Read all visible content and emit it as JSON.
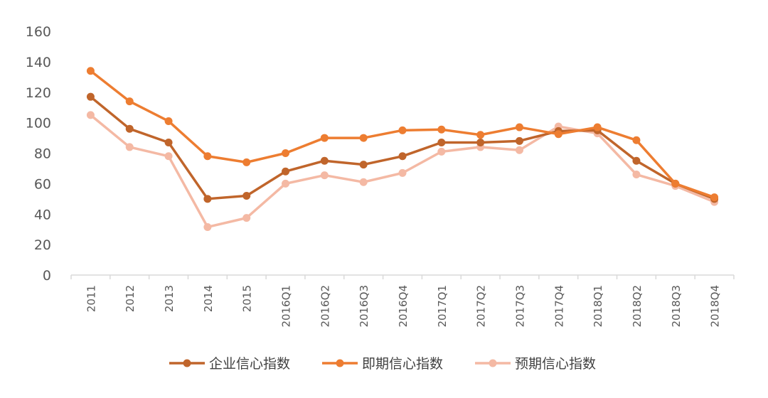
{
  "chart_data": {
    "type": "line",
    "title": "",
    "xlabel": "",
    "ylabel": "",
    "ylim": [
      0,
      160
    ],
    "yticks": [
      0,
      20,
      40,
      60,
      80,
      100,
      120,
      140,
      160
    ],
    "grid": false,
    "legend_position": "bottom",
    "categories": [
      "2011",
      "2012",
      "2013",
      "2014",
      "2015",
      "2016Q1",
      "2016Q2",
      "2016Q3",
      "2016Q4",
      "2017Q1",
      "2017Q2",
      "2017Q3",
      "2017Q4",
      "2018Q1",
      "2018Q2",
      "2018Q3",
      "2018Q4"
    ],
    "series": [
      {
        "name": "企业信心指数",
        "color": "#c0652b",
        "values": [
          117,
          96,
          87,
          50,
          52,
          68,
          75,
          72.5,
          78,
          87,
          87,
          88,
          94.5,
          95,
          75,
          60,
          50
        ]
      },
      {
        "name": "即期信心指数",
        "color": "#ed7d31",
        "values": [
          134,
          114,
          101,
          78,
          74,
          80,
          90,
          90,
          95,
          95.5,
          92,
          97,
          92.5,
          97,
          88.5,
          60,
          51
        ]
      },
      {
        "name": "预期信心指数",
        "color": "#f4b9a4",
        "values": [
          105,
          84,
          78,
          31.5,
          37.5,
          60,
          65.5,
          61,
          67,
          81,
          84,
          82,
          97.5,
          93,
          66,
          58.5,
          48
        ]
      }
    ]
  }
}
